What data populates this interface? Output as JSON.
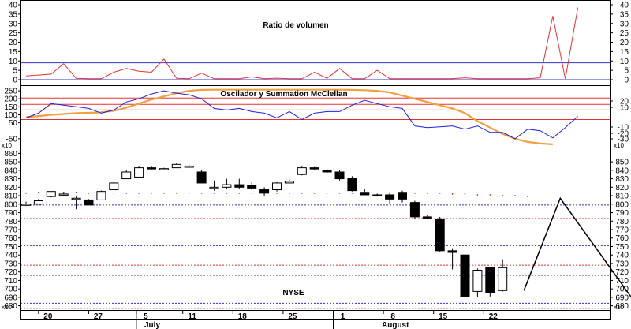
{
  "chart_data": [
    {
      "type": "line",
      "title": "Ratio de volumen",
      "yticks_left": [
        0,
        5,
        10,
        15,
        20,
        25,
        30,
        35,
        40
      ],
      "yticks_right": [
        0,
        5,
        10,
        15,
        20,
        25,
        30,
        35,
        40
      ],
      "ylim": [
        0,
        40
      ],
      "hlines": [
        {
          "value": 9,
          "color": "#3333cc"
        },
        {
          "value": 0,
          "color": "#3333cc"
        }
      ],
      "series": [
        {
          "color": "#e83030",
          "values": [
            2,
            2.5,
            3,
            8.5,
            0.7,
            0.5,
            0.5,
            4,
            6,
            4.5,
            4,
            11,
            0.7,
            0.5,
            3.5,
            0.5,
            0.5,
            0.5,
            1.5,
            0.5,
            0.8,
            0.5,
            0.5,
            4,
            0.7,
            6,
            0.5,
            0.5,
            5,
            0.5,
            0.5,
            0.5,
            0.5,
            0.5,
            0.5,
            1,
            0.5,
            0.5,
            0.5,
            0.5,
            0.5,
            1,
            34,
            0.5,
            38.5
          ]
        }
      ]
    },
    {
      "type": "line",
      "title": "Oscilador y Summation McClellan",
      "yticks_left": [
        -50,
        50,
        100,
        150,
        200,
        250
      ],
      "yticks_right": [
        -30,
        -20,
        -10,
        10,
        20
      ],
      "multiplier_label": "x10",
      "ylim": [
        -105,
        280
      ],
      "hlines": [
        {
          "value": 205,
          "color": "#e83030"
        },
        {
          "value": 165,
          "color": "#e83030"
        },
        {
          "value": 130,
          "color": "#e83030"
        },
        {
          "value": 70,
          "color": "#e83030"
        }
      ],
      "series": [
        {
          "color": "#2020e0",
          "values": [
            80,
            110,
            170,
            160,
            150,
            140,
            110,
            130,
            180,
            200,
            230,
            250,
            235,
            225,
            200,
            140,
            130,
            140,
            120,
            110,
            80,
            120,
            70,
            110,
            120,
            120,
            160,
            190,
            170,
            150,
            140,
            30,
            20,
            25,
            30,
            10,
            30,
            -10,
            -10,
            -50,
            10,
            0,
            -45,
            20,
            90
          ]
        },
        {
          "color": "#f0a040",
          "values": [
            85,
            92,
            100,
            105,
            110,
            112,
            115,
            125,
            145,
            170,
            195,
            215,
            235,
            250,
            256,
            257,
            257,
            257,
            257,
            257,
            257,
            257,
            257,
            257,
            257,
            257,
            256,
            254,
            250,
            240,
            220,
            200,
            180,
            160,
            140,
            110,
            60,
            20,
            -20,
            -50,
            -70,
            -80,
            -85
          ]
        }
      ]
    },
    {
      "type": "candlestick",
      "title": "NYSE",
      "yticks_left": [
        680,
        690,
        700,
        710,
        720,
        730,
        740,
        750,
        760,
        770,
        780,
        790,
        800,
        810,
        820,
        830,
        840,
        850,
        860
      ],
      "yticks_right": [
        680,
        690,
        700,
        710,
        720,
        730,
        740,
        750,
        760,
        770,
        780,
        790,
        800,
        810,
        820,
        830,
        840,
        850
      ],
      "multiplier_label": "x10",
      "ylim": [
        675,
        865
      ],
      "hlines": [
        {
          "value": 799,
          "color": "#3333cc"
        },
        {
          "value": 751,
          "color": "#3333cc"
        },
        {
          "value": 716,
          "color": "#3333cc"
        },
        {
          "value": 683,
          "color": "#3333cc"
        },
        {
          "value": 783,
          "color": "#e83030"
        },
        {
          "value": 728,
          "color": "#e83030"
        },
        {
          "value": 677,
          "color": "#e83030"
        }
      ],
      "moving_average_color": "#cc3333",
      "moving_average": [
        813,
        814,
        814,
        814,
        814,
        813,
        813,
        813,
        813,
        813,
        813,
        813,
        813,
        813,
        813,
        813,
        813,
        813,
        813,
        813,
        813,
        813,
        813,
        813,
        813,
        813,
        813,
        813,
        813,
        813,
        813,
        813,
        813,
        813,
        812,
        812,
        811,
        811,
        810,
        810,
        809
      ],
      "candles": [
        {
          "o": 800,
          "h": 803,
          "l": 798,
          "c": 800
        },
        {
          "o": 800,
          "h": 806,
          "l": 800,
          "c": 804
        },
        {
          "o": 809,
          "h": 815,
          "l": 808,
          "c": 815
        },
        {
          "o": 812,
          "h": 814,
          "l": 810,
          "c": 812
        },
        {
          "o": 807,
          "h": 809,
          "l": 794,
          "c": 807
        },
        {
          "o": 805,
          "h": 806,
          "l": 799,
          "c": 799
        },
        {
          "o": 805,
          "h": 816,
          "l": 805,
          "c": 815
        },
        {
          "o": 817,
          "h": 826,
          "l": 817,
          "c": 825
        },
        {
          "o": 830,
          "h": 840,
          "l": 830,
          "c": 838
        },
        {
          "o": 832,
          "h": 845,
          "l": 832,
          "c": 843
        },
        {
          "o": 843,
          "h": 845,
          "l": 840,
          "c": 842
        },
        {
          "o": 841,
          "h": 843,
          "l": 840,
          "c": 842
        },
        {
          "o": 843,
          "h": 849,
          "l": 843,
          "c": 847
        },
        {
          "o": 845,
          "h": 847,
          "l": 843,
          "c": 845
        },
        {
          "o": 838,
          "h": 840,
          "l": 825,
          "c": 825
        },
        {
          "o": 820,
          "h": 828,
          "l": 816,
          "c": 820
        },
        {
          "o": 820,
          "h": 830,
          "l": 818,
          "c": 823
        },
        {
          "o": 823,
          "h": 830,
          "l": 818,
          "c": 820
        },
        {
          "o": 822,
          "h": 826,
          "l": 817,
          "c": 819
        },
        {
          "o": 817,
          "h": 820,
          "l": 810,
          "c": 813
        },
        {
          "o": 817,
          "h": 826,
          "l": 815,
          "c": 825
        },
        {
          "o": 825,
          "h": 829,
          "l": 825,
          "c": 827
        },
        {
          "o": 835,
          "h": 845,
          "l": 834,
          "c": 843
        },
        {
          "o": 843,
          "h": 844,
          "l": 840,
          "c": 842
        },
        {
          "o": 840,
          "h": 842,
          "l": 836,
          "c": 838
        },
        {
          "o": 838,
          "h": 840,
          "l": 828,
          "c": 830
        },
        {
          "o": 831,
          "h": 833,
          "l": 815,
          "c": 816
        },
        {
          "o": 814,
          "h": 818,
          "l": 811,
          "c": 811
        },
        {
          "o": 811,
          "h": 812,
          "l": 809,
          "c": 810
        },
        {
          "o": 811,
          "h": 814,
          "l": 800,
          "c": 806
        },
        {
          "o": 814,
          "h": 816,
          "l": 802,
          "c": 806
        },
        {
          "o": 802,
          "h": 804,
          "l": 782,
          "c": 785
        },
        {
          "o": 785,
          "h": 787,
          "l": 782,
          "c": 784
        },
        {
          "o": 782,
          "h": 785,
          "l": 744,
          "c": 745
        },
        {
          "o": 745,
          "h": 748,
          "l": 723,
          "c": 743
        },
        {
          "o": 740,
          "h": 743,
          "l": 690,
          "c": 691
        },
        {
          "o": 697,
          "h": 724,
          "l": 690,
          "c": 722
        },
        {
          "o": 725,
          "h": 726,
          "l": 691,
          "c": 695
        },
        {
          "o": 698,
          "h": 735,
          "l": 697,
          "c": 725
        }
      ],
      "projection": [
        {
          "candle": 39.7,
          "value": 698
        },
        {
          "candle": 42.6,
          "value": 807
        },
        {
          "candle": 48.9,
          "value": 677
        }
      ]
    }
  ],
  "x_axis": {
    "tick_labels": [
      "20",
      "27",
      "5",
      "11",
      "18",
      "25",
      "1",
      "8",
      "15",
      "22"
    ],
    "tick_candles": [
      1.5,
      5.5,
      9.3,
      13.0,
      17.0,
      21.0,
      25.0,
      29.0,
      33.0,
      37.0
    ],
    "month_labels": [
      "July",
      "August"
    ]
  }
}
